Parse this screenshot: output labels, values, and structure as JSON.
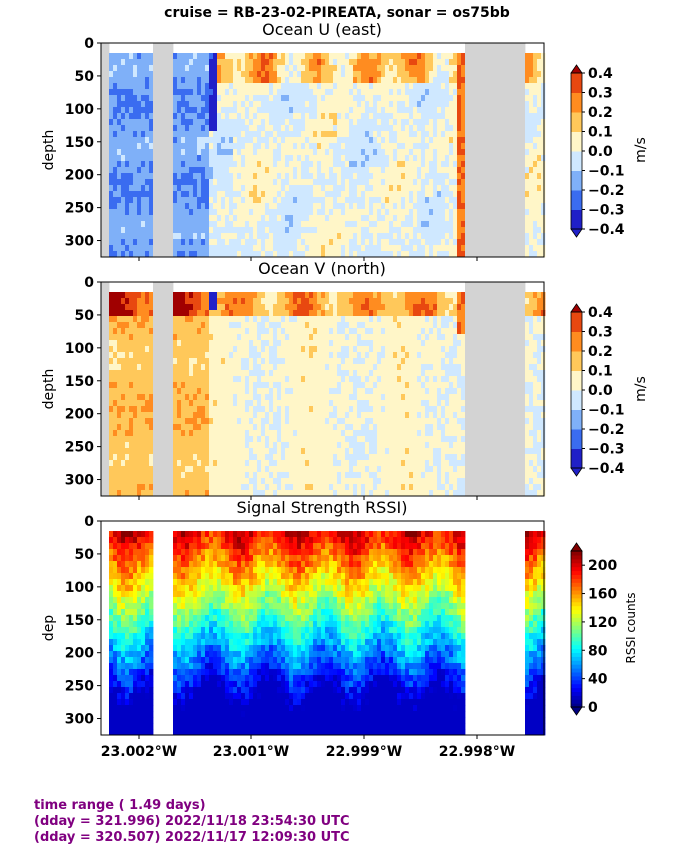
{
  "suptitle": "cruise = RB-23-02-PIREATA,  sonar = os75bb",
  "footer": {
    "line1": "time range ( 1.49 days)",
    "line2": "(dday = 321.996) 2022/11/18 23:54:30 UTC",
    "line3": "(dday = 320.507) 2022/11/17 12:09:30 UTC"
  },
  "colors": {
    "missing": "#d3d3d3",
    "footer_text": "#800080"
  },
  "chart_data": [
    {
      "type": "heatmap",
      "title": "Ocean U (east)",
      "ylabel": "depth",
      "yticks": [
        "0",
        "50",
        "100",
        "150",
        "200",
        "250",
        "300"
      ],
      "ylim": [
        325,
        0
      ],
      "xticks": [
        "23.002°W",
        "23.001°W",
        "22.999°W",
        "22.998°W"
      ],
      "colorbar": {
        "label": "m/s",
        "ticks": [
          "0.4",
          "0.3",
          "0.2",
          "0.1",
          "0.0",
          "−0.1",
          "−0.2",
          "−0.3",
          "−0.4"
        ],
        "levels": [
          -0.4,
          -0.3,
          -0.2,
          -0.1,
          0.0,
          0.1,
          0.2,
          0.3,
          0.4
        ],
        "palette": [
          "#2020c8",
          "#3a6cf0",
          "#7fb0f8",
          "#cfe8ff",
          "#fff6c8",
          "#ffc85a",
          "#ff8c20",
          "#e84810",
          "#a00000"
        ]
      },
      "data_range": [
        -0.4,
        0.4
      ]
    },
    {
      "type": "heatmap",
      "title": "Ocean V (north)",
      "ylabel": "depth",
      "yticks": [
        "0",
        "50",
        "100",
        "150",
        "200",
        "250",
        "300"
      ],
      "ylim": [
        325,
        0
      ],
      "xticks": [
        "23.002°W",
        "23.001°W",
        "22.999°W",
        "22.998°W"
      ],
      "colorbar": {
        "label": "m/s",
        "ticks": [
          "0.4",
          "0.3",
          "0.2",
          "0.1",
          "0.0",
          "−0.1",
          "−0.2",
          "−0.3",
          "−0.4"
        ],
        "levels": [
          -0.4,
          -0.3,
          -0.2,
          -0.1,
          0.0,
          0.1,
          0.2,
          0.3,
          0.4
        ],
        "palette": [
          "#2020c8",
          "#3a6cf0",
          "#7fb0f8",
          "#cfe8ff",
          "#fff6c8",
          "#ffc85a",
          "#ff8c20",
          "#e84810",
          "#a00000"
        ]
      },
      "data_range": [
        -0.4,
        0.4
      ]
    },
    {
      "type": "heatmap",
      "title": "Signal Strength RSSI)",
      "ylabel": "dep",
      "yticks": [
        "0",
        "50",
        "100",
        "150",
        "200",
        "250",
        "300"
      ],
      "ylim": [
        325,
        0
      ],
      "xticks": [
        "23.002°W",
        "23.001°W",
        "22.999°W",
        "22.998°W"
      ],
      "colorbar": {
        "label": "RSSI counts",
        "ticks": [
          "200",
          "160",
          "120",
          "80",
          "40",
          "0"
        ],
        "colormap": "jet"
      },
      "data_range": [
        0,
        220
      ]
    }
  ]
}
